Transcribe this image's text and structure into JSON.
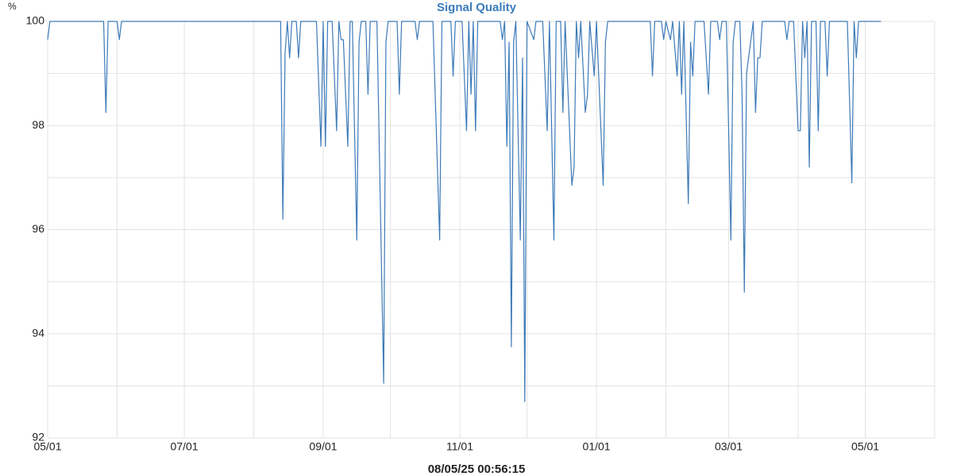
{
  "chart_data": {
    "type": "line",
    "title": "Signal Quality",
    "y_unit": "%",
    "footer": "08/05/25 00:56:15",
    "color": "#3d7ab8",
    "grid": true,
    "xlim": [
      0,
      396
    ],
    "xticks": [
      {
        "value": 0,
        "label": "05/01"
      },
      {
        "value": 61,
        "label": "07/01"
      },
      {
        "value": 123,
        "label": "09/01"
      },
      {
        "value": 184,
        "label": "11/01"
      },
      {
        "value": 245,
        "label": "01/01"
      },
      {
        "value": 304,
        "label": "03/01"
      },
      {
        "value": 365,
        "label": "05/01"
      }
    ],
    "xminor": [
      31,
      92,
      153,
      214,
      276,
      335,
      396
    ],
    "ylim": [
      92,
      100
    ],
    "yticks": [
      92,
      94,
      96,
      98,
      100
    ],
    "yminor": [
      93,
      95,
      97,
      99
    ],
    "x": [
      0,
      1,
      25,
      26,
      27,
      31,
      32,
      33,
      104,
      105,
      106,
      107,
      108,
      109,
      111,
      112,
      113,
      120,
      122,
      123,
      124,
      125,
      127,
      129,
      130,
      131,
      132,
      134,
      135,
      136,
      138,
      139,
      140,
      142,
      143,
      144,
      147,
      150,
      151,
      152,
      156,
      157,
      158,
      164,
      165,
      166,
      172,
      175,
      176,
      180,
      181,
      182,
      185,
      187,
      188,
      189,
      190,
      191,
      192,
      202,
      203,
      204,
      205,
      206,
      207,
      208,
      209,
      211,
      212,
      213,
      214,
      217,
      218,
      221,
      223,
      224,
      226,
      227,
      229,
      230,
      231,
      234,
      235,
      236,
      237,
      238,
      240,
      241,
      242,
      244,
      245,
      248,
      249,
      250,
      269,
      270,
      271,
      274,
      275,
      276,
      278,
      279,
      281,
      282,
      283,
      284,
      286,
      287,
      288,
      289,
      293,
      295,
      296,
      299,
      300,
      301,
      303,
      305,
      306,
      307,
      309,
      310,
      311,
      312,
      315,
      316,
      317,
      318,
      319,
      329,
      330,
      331,
      333,
      335,
      336,
      337,
      338,
      339,
      340,
      341,
      343,
      344,
      345,
      347,
      348,
      349,
      357,
      359,
      360,
      361,
      362,
      372
    ],
    "values": [
      99.65,
      100,
      100,
      98.25,
      100,
      100,
      99.65,
      100,
      100,
      96.2,
      99.4,
      100,
      99.3,
      100,
      100,
      99.3,
      100,
      100,
      97.6,
      100,
      97.6,
      100,
      100,
      97.9,
      100,
      99.65,
      99.65,
      97.6,
      100,
      100,
      95.8,
      99.6,
      100,
      100,
      98.6,
      100,
      100,
      93.05,
      99.6,
      100,
      100,
      98.6,
      100,
      100,
      99.65,
      100,
      100,
      95.8,
      100,
      100,
      98.95,
      100,
      100,
      97.9,
      100,
      98.6,
      100,
      97.9,
      100,
      100,
      99.65,
      100,
      97.6,
      99.6,
      93.75,
      99.6,
      100,
      95.8,
      99.3,
      92.7,
      100,
      99.65,
      100,
      100,
      97.9,
      100,
      95.8,
      100,
      100,
      98.25,
      100,
      96.85,
      97.2,
      100,
      99.3,
      100,
      98.25,
      98.6,
      100,
      98.95,
      100,
      96.85,
      99.6,
      100,
      100,
      98.95,
      100,
      100,
      99.65,
      100,
      99.65,
      100,
      98.95,
      100,
      98.6,
      100,
      96.5,
      99.6,
      98.95,
      100,
      100,
      98.6,
      100,
      100,
      99.65,
      100,
      100,
      95.8,
      99.6,
      100,
      100,
      98.6,
      94.8,
      99,
      100,
      98.25,
      99.3,
      99.3,
      100,
      100,
      99.65,
      100,
      100,
      97.9,
      97.9,
      100,
      99.3,
      100,
      97.2,
      100,
      100,
      97.9,
      100,
      100,
      98.95,
      100,
      100,
      96.9,
      100,
      99.3,
      100,
      100
    ]
  }
}
